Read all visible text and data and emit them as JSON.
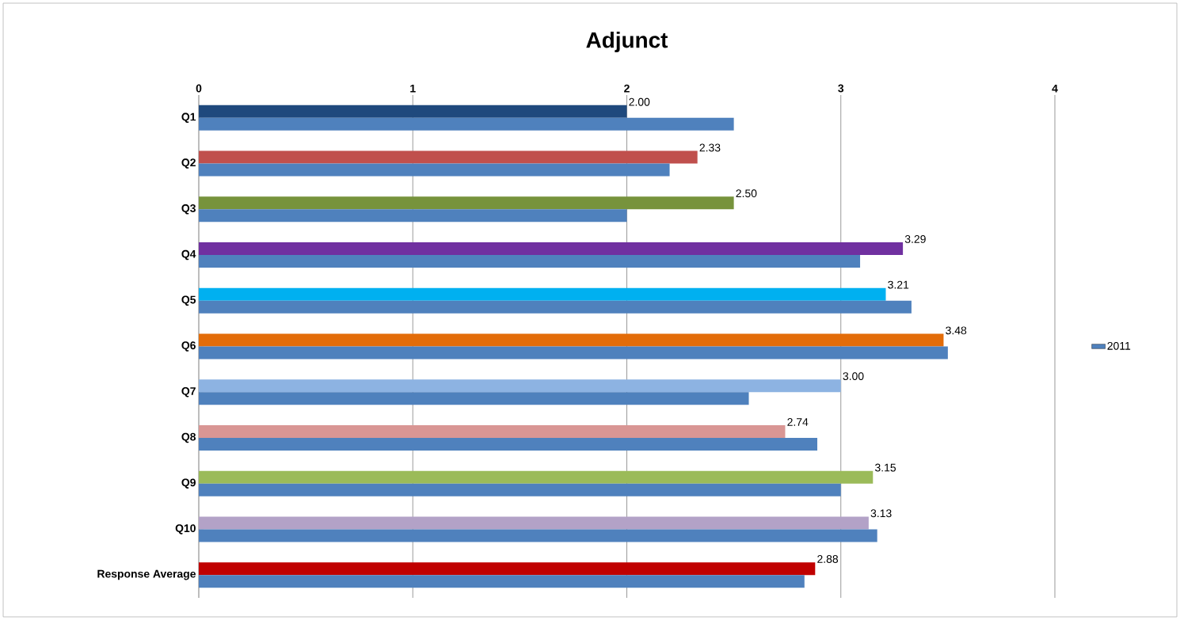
{
  "chart_data": {
    "type": "bar",
    "orientation": "horizontal",
    "title": "Adjunct",
    "categories": [
      "Q1",
      "Q2",
      "Q3",
      "Q4",
      "Q5",
      "Q6",
      "Q7",
      "Q8",
      "Q9",
      "Q10",
      "Response Average"
    ],
    "series": [
      {
        "colors": [
          "#1f497d",
          "#c0504d",
          "#77933c",
          "#7030a0",
          "#00b0f0",
          "#e36c09",
          "#8db3e2",
          "#d99694",
          "#9bbb59",
          "#b3a2c7",
          "#c00000"
        ],
        "values": [
          2.0,
          2.33,
          2.5,
          3.29,
          3.21,
          3.48,
          3.0,
          2.74,
          3.15,
          3.13,
          2.88
        ],
        "value_labels": [
          "2.00",
          "2.33",
          "2.50",
          "3.29",
          "3.21",
          "3.48",
          "3.00",
          "2.74",
          "3.15",
          "3.13",
          "2.88"
        ]
      },
      {
        "name": "2011",
        "color": "#4f81bd",
        "values": [
          2.5,
          2.2,
          2.0,
          3.09,
          3.33,
          3.5,
          2.57,
          2.89,
          3.0,
          3.17,
          2.83
        ]
      }
    ],
    "xlim": [
      0,
      4
    ],
    "xticks": [
      0,
      1,
      2,
      3,
      4
    ],
    "grid": "x",
    "legend": "right"
  }
}
